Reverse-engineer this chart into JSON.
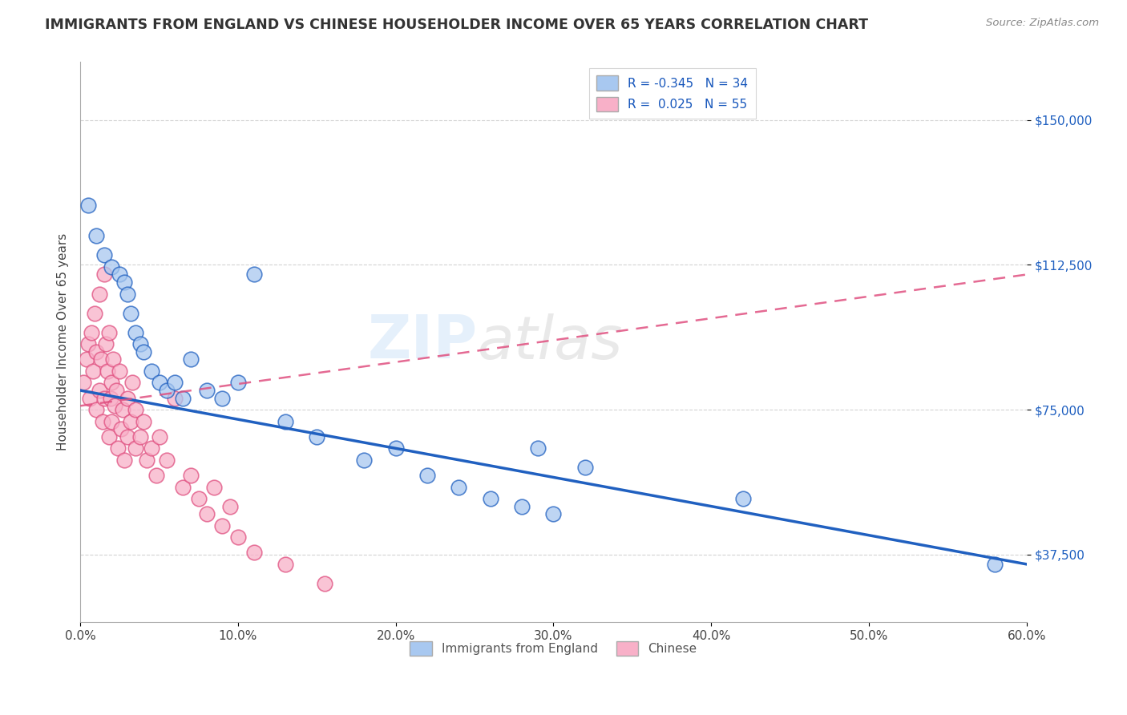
{
  "title": "IMMIGRANTS FROM ENGLAND VS CHINESE HOUSEHOLDER INCOME OVER 65 YEARS CORRELATION CHART",
  "source": "Source: ZipAtlas.com",
  "ylabel": "Householder Income Over 65 years",
  "xlim": [
    0.0,
    0.6
  ],
  "ylim": [
    20000,
    165000
  ],
  "yticks": [
    37500,
    75000,
    112500,
    150000
  ],
  "xticks": [
    0.0,
    0.1,
    0.2,
    0.3,
    0.4,
    0.5,
    0.6
  ],
  "xtick_labels": [
    "0.0%",
    "10.0%",
    "20.0%",
    "30.0%",
    "40.0%",
    "50.0%",
    "60.0%"
  ],
  "ytick_labels": [
    "$37,500",
    "$75,000",
    "$112,500",
    "$150,000"
  ],
  "england_color": "#A8C8F0",
  "chinese_color": "#F8B0C8",
  "england_R": -0.345,
  "england_N": 34,
  "chinese_R": 0.025,
  "chinese_N": 55,
  "england_line_color": "#2060C0",
  "chinese_line_color": "#E05080",
  "watermark": "ZIPatlas",
  "legend_R_color": "#1555BB",
  "england_scatter_x": [
    0.005,
    0.01,
    0.015,
    0.02,
    0.025,
    0.028,
    0.03,
    0.032,
    0.035,
    0.038,
    0.04,
    0.045,
    0.05,
    0.055,
    0.06,
    0.065,
    0.07,
    0.08,
    0.09,
    0.1,
    0.11,
    0.13,
    0.15,
    0.18,
    0.2,
    0.22,
    0.24,
    0.26,
    0.28,
    0.29,
    0.3,
    0.58,
    0.42,
    0.32
  ],
  "england_scatter_y": [
    128000,
    120000,
    115000,
    112000,
    110000,
    108000,
    105000,
    100000,
    95000,
    92000,
    90000,
    85000,
    82000,
    80000,
    82000,
    78000,
    88000,
    80000,
    78000,
    82000,
    110000,
    72000,
    68000,
    62000,
    65000,
    58000,
    55000,
    52000,
    50000,
    65000,
    48000,
    35000,
    52000,
    60000
  ],
  "chinese_scatter_x": [
    0.002,
    0.004,
    0.005,
    0.006,
    0.007,
    0.008,
    0.009,
    0.01,
    0.01,
    0.012,
    0.012,
    0.013,
    0.014,
    0.015,
    0.015,
    0.016,
    0.017,
    0.018,
    0.018,
    0.019,
    0.02,
    0.02,
    0.021,
    0.022,
    0.023,
    0.024,
    0.025,
    0.026,
    0.027,
    0.028,
    0.03,
    0.03,
    0.032,
    0.033,
    0.035,
    0.035,
    0.038,
    0.04,
    0.042,
    0.045,
    0.048,
    0.05,
    0.055,
    0.06,
    0.065,
    0.07,
    0.075,
    0.08,
    0.085,
    0.09,
    0.095,
    0.1,
    0.11,
    0.13,
    0.155
  ],
  "chinese_scatter_y": [
    82000,
    88000,
    92000,
    78000,
    95000,
    85000,
    100000,
    90000,
    75000,
    105000,
    80000,
    88000,
    72000,
    110000,
    78000,
    92000,
    85000,
    68000,
    95000,
    78000,
    82000,
    72000,
    88000,
    76000,
    80000,
    65000,
    85000,
    70000,
    75000,
    62000,
    78000,
    68000,
    72000,
    82000,
    65000,
    75000,
    68000,
    72000,
    62000,
    65000,
    58000,
    68000,
    62000,
    78000,
    55000,
    58000,
    52000,
    48000,
    55000,
    45000,
    50000,
    42000,
    38000,
    35000,
    30000
  ]
}
